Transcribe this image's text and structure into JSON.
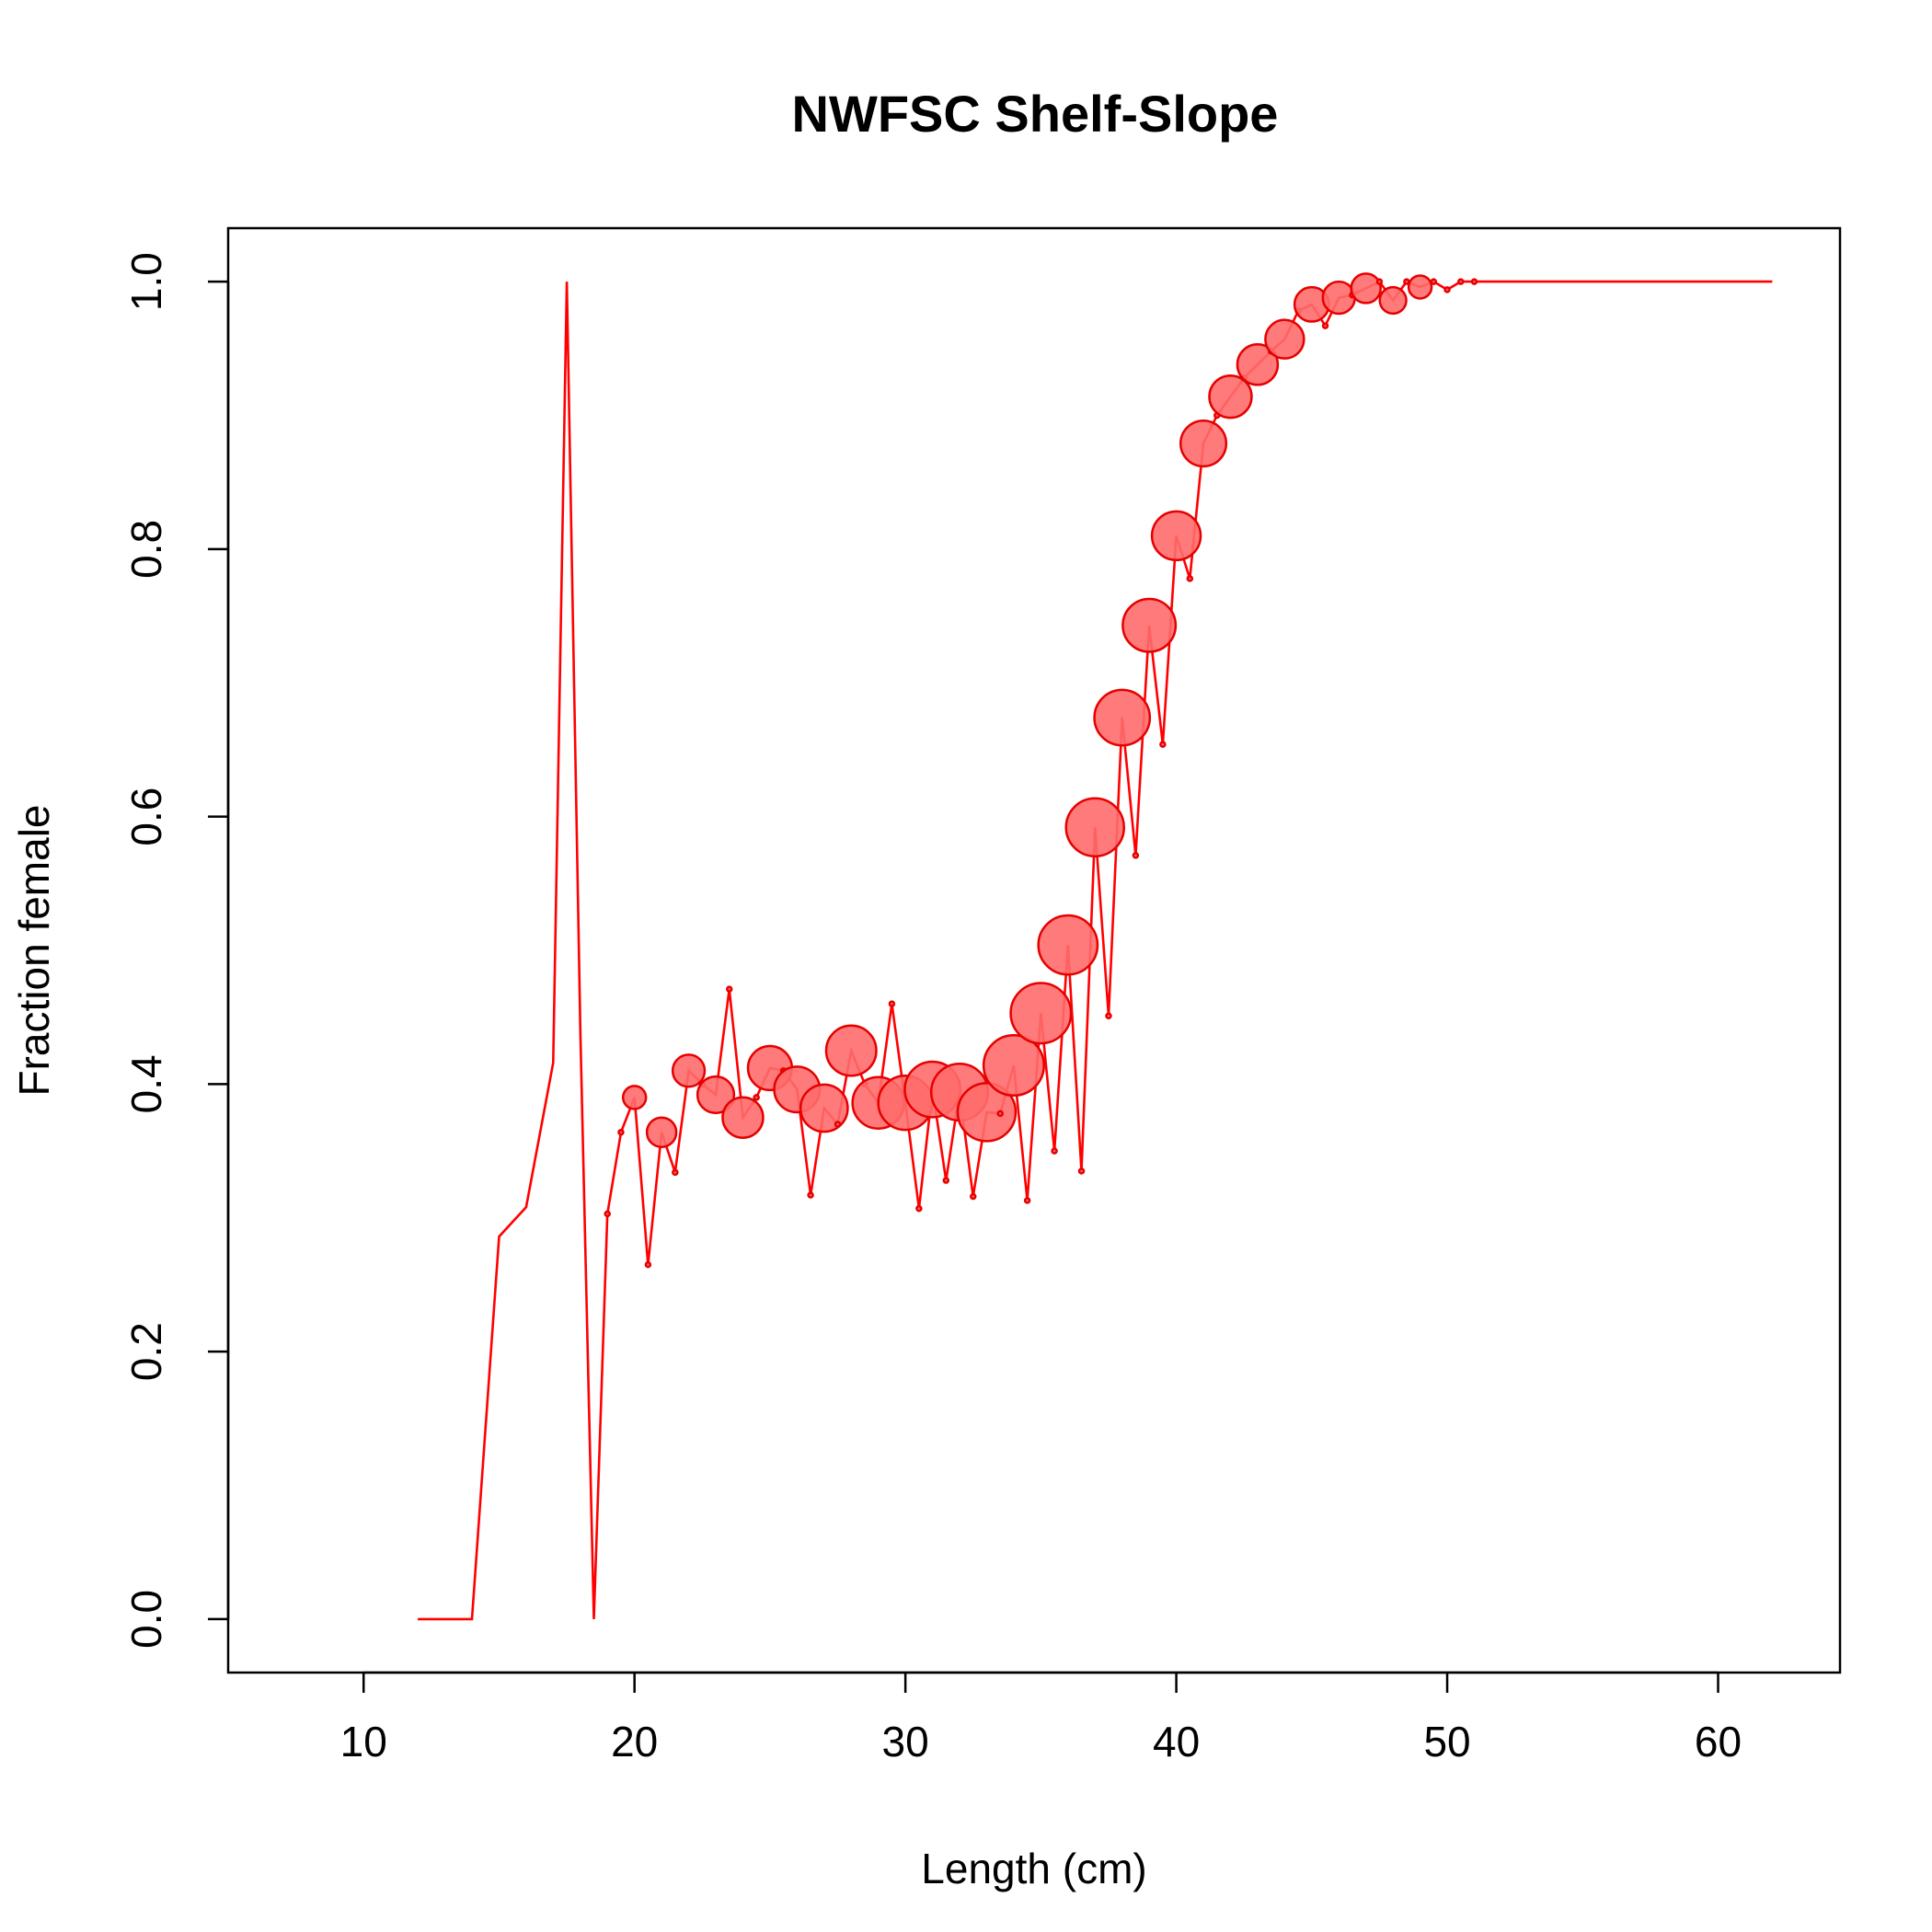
{
  "chart_data": {
    "type": "scatter",
    "title": "NWFSC Shelf-Slope",
    "xlabel": "Length (cm)",
    "ylabel": "Fraction female",
    "xlim": [
      5,
      64.5
    ],
    "ylim": [
      -0.04,
      1.04
    ],
    "x_ticks": [
      10,
      20,
      30,
      40,
      50,
      60
    ],
    "y_ticks": [
      0.0,
      0.2,
      0.4,
      0.6,
      0.8,
      1.0
    ],
    "x_tick_labels": [
      "10",
      "20",
      "30",
      "40",
      "50",
      "60"
    ],
    "y_tick_labels": [
      "0.0",
      "0.2",
      "0.4",
      "0.6",
      "0.8",
      "1.0"
    ],
    "grid": false,
    "line_color": "#ff0000",
    "point_fill": "#ff6b6b",
    "point_edge": "#e60000",
    "series": [
      {
        "x": [
          12,
          13,
          14,
          15,
          16,
          17,
          17.5,
          18,
          18.5,
          19,
          19.5,
          20,
          20.5,
          21,
          21.5,
          22,
          22.5,
          23,
          23.5,
          24,
          24.5,
          25,
          25.5,
          26,
          26.5,
          27,
          27.5,
          28,
          28.5,
          29,
          29.5,
          30,
          30.5,
          31,
          31.5,
          32,
          32.5,
          33,
          33.5,
          34,
          34.5,
          35,
          35.5,
          36,
          36.5,
          37,
          37.5,
          38,
          38.5,
          39,
          39.5,
          40,
          40.5,
          41,
          41.5,
          42,
          42.5,
          43,
          43.5,
          44,
          44.5,
          45,
          45.5,
          46,
          46.5,
          47,
          47.5,
          48,
          48.5,
          49,
          49.5,
          50,
          50.5,
          51,
          52,
          53,
          54,
          55,
          56,
          57,
          58,
          59,
          60,
          61,
          62
        ],
        "y": [
          0.0,
          0.0,
          0.0,
          0.286,
          0.308,
          0.416,
          1.0,
          0.44,
          0.0,
          0.303,
          0.364,
          0.39,
          0.265,
          0.364,
          0.334,
          0.41,
          0.4,
          0.392,
          0.471,
          0.375,
          0.39,
          0.412,
          0.41,
          0.396,
          0.317,
          0.382,
          0.37,
          0.425,
          0.4,
          0.386,
          0.46,
          0.386,
          0.307,
          0.396,
          0.328,
          0.394,
          0.316,
          0.379,
          0.378,
          0.414,
          0.313,
          0.453,
          0.35,
          0.504,
          0.335,
          0.592,
          0.451,
          0.674,
          0.571,
          0.743,
          0.654,
          0.81,
          0.778,
          0.879,
          0.9,
          0.914,
          0.928,
          0.938,
          0.948,
          0.957,
          0.978,
          0.983,
          0.967,
          0.988,
          0.99,
          0.995,
          1.0,
          0.986,
          1.0,
          0.996,
          1.0,
          0.994,
          1.0,
          1.0,
          1.0,
          1.0,
          1.0,
          1.0,
          1.0,
          1.0,
          1.0,
          1.0,
          1.0,
          1.0,
          1.0
        ],
        "size": [
          0,
          0,
          0,
          0,
          0,
          0,
          0,
          0,
          0,
          1,
          1,
          2,
          1,
          4,
          1,
          5,
          1,
          7,
          1,
          9,
          1,
          11,
          1,
          12,
          1,
          13,
          1,
          15,
          1,
          16,
          1,
          18,
          1,
          19,
          1,
          20,
          1,
          21,
          1,
          23,
          1,
          23,
          1,
          22,
          1,
          21,
          1,
          19,
          1,
          17,
          1,
          14,
          1,
          12,
          1,
          10,
          1,
          9,
          1,
          8,
          1,
          6,
          1,
          5,
          1,
          4,
          1,
          3,
          1,
          2,
          1,
          1,
          1,
          1,
          0,
          0,
          0,
          0,
          0,
          0,
          0,
          0,
          0,
          0,
          0
        ]
      }
    ]
  }
}
